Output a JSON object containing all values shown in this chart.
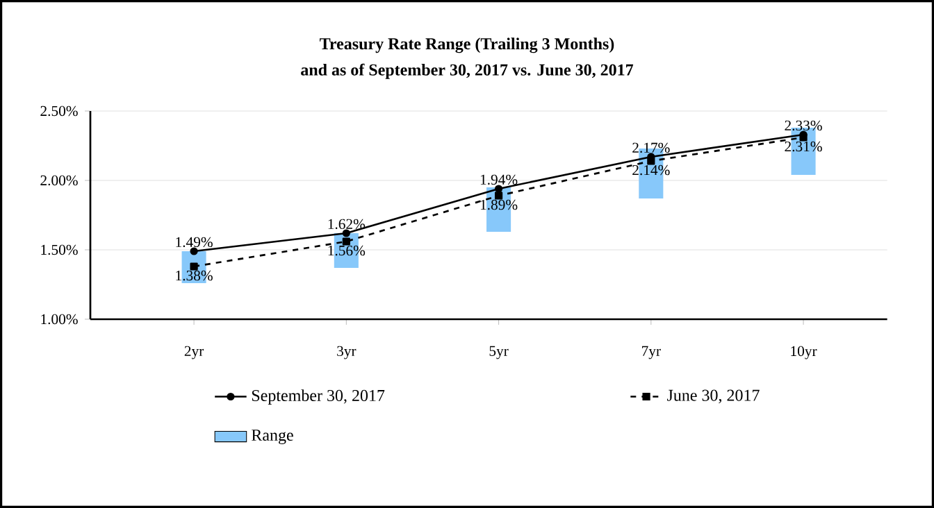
{
  "chart_data": {
    "type": "line",
    "title": "Treasury Rate Range (Trailing 3 Months)",
    "subtitle": "and as of September 30, 2017 vs. June 30, 2017",
    "categories": [
      "2yr",
      "3yr",
      "5yr",
      "7yr",
      "10yr"
    ],
    "series": [
      {
        "name": "September 30, 2017",
        "color": "#000000",
        "marker": "circle",
        "line_style": "solid",
        "values": [
          1.49,
          1.62,
          1.94,
          2.17,
          2.33
        ],
        "value_labels": [
          "1.49%",
          "1.62%",
          "1.94%",
          "2.17%",
          "2.33%"
        ]
      },
      {
        "name": "June 30, 2017",
        "color": "#000000",
        "marker": "square",
        "line_style": "dashed",
        "values": [
          1.38,
          1.56,
          1.89,
          2.14,
          2.31
        ],
        "value_labels": [
          "1.38%",
          "1.56%",
          "1.89%",
          "2.14%",
          "2.31%"
        ]
      },
      {
        "name": "Range",
        "type": "bar",
        "color": "#87c8fa",
        "base": [
          1.26,
          1.37,
          1.63,
          1.87,
          2.04
        ],
        "values": [
          0.23,
          0.25,
          0.32,
          0.36,
          0.34
        ]
      }
    ],
    "ylim": [
      1.0,
      2.5
    ],
    "yticks": [
      {
        "value": 1.0,
        "label": "1.00%"
      },
      {
        "value": 1.5,
        "label": "1.50%"
      },
      {
        "value": 2.0,
        "label": "2.00%"
      },
      {
        "value": 2.5,
        "label": "2.50%"
      }
    ],
    "grid": "y",
    "legend": "bottom"
  }
}
